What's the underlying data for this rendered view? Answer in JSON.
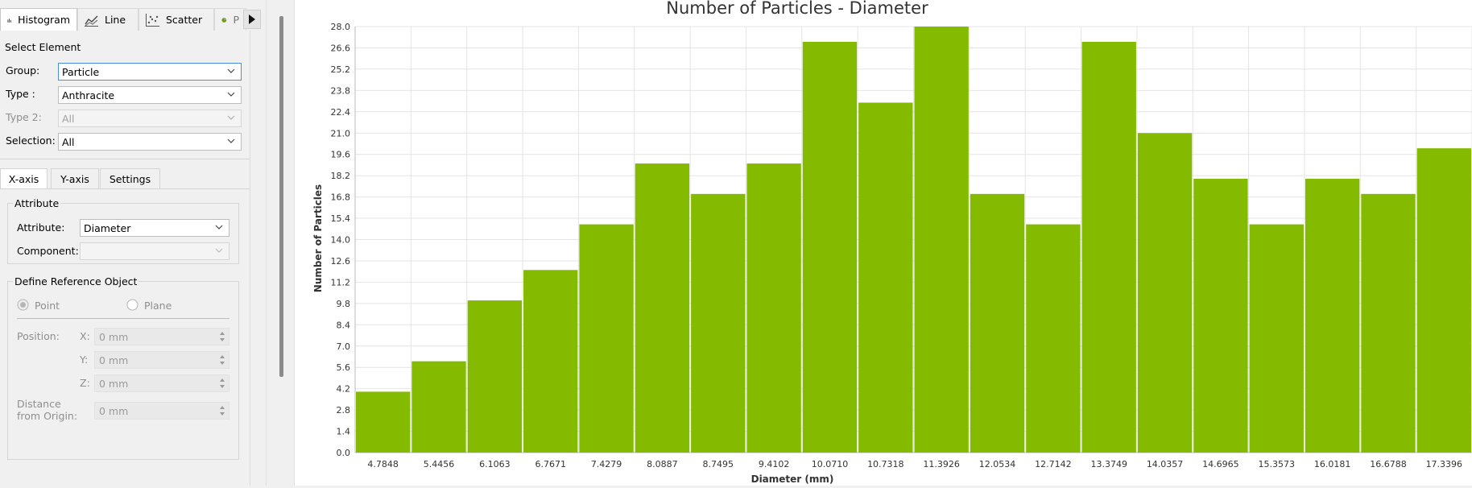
{
  "tabs": [
    {
      "label": "Histogram",
      "icon": "bar-chart-icon",
      "active": true
    },
    {
      "label": "Line",
      "icon": "line-chart-icon",
      "active": false
    },
    {
      "label": "Scatter",
      "icon": "scatter-chart-icon",
      "active": false
    },
    {
      "label": "P",
      "icon": "pie-chart-icon",
      "active": false
    }
  ],
  "select_element": {
    "title": "Select Element",
    "group": {
      "label": "Group:",
      "value": "Particle"
    },
    "type": {
      "label": "Type :",
      "value": "Anthracite"
    },
    "type2": {
      "label": "Type 2:",
      "value": "All"
    },
    "selection": {
      "label": "Selection:",
      "value": "All"
    }
  },
  "subtabs": [
    "X-axis",
    "Y-axis",
    "Settings"
  ],
  "attribute_group": {
    "title": "Attribute",
    "attribute": {
      "label": "Attribute:",
      "value": "Diameter"
    },
    "component": {
      "label": "Component:",
      "value": ""
    }
  },
  "reference": {
    "title": "Define Reference Object",
    "point_label": "Point",
    "plane_label": "Plane",
    "position_label": "Position:",
    "x": {
      "label": "X:",
      "value": "0 mm"
    },
    "y": {
      "label": "Y:",
      "value": "0 mm"
    },
    "z": {
      "label": "Z:",
      "value": "0 mm"
    },
    "distance_label_1": "Distance",
    "distance_label_2": "from Origin:",
    "distance": {
      "value": "0 mm"
    }
  },
  "colors": {
    "bar": "#84bb00",
    "grid": "#e4e4e4",
    "accent": "#4a90d9"
  },
  "chart_data": {
    "type": "bar",
    "title": "Number of Particles - Diameter",
    "xlabel": "Diameter (mm)",
    "ylabel": "Number of Particles",
    "categories": [
      "4.7848",
      "5.4456",
      "6.1063",
      "6.7671",
      "7.4279",
      "8.0887",
      "8.7495",
      "9.4102",
      "10.0710",
      "10.7318",
      "11.3926",
      "12.0534",
      "12.7142",
      "13.3749",
      "14.0357",
      "14.6965",
      "15.3573",
      "16.0181",
      "16.6788",
      "17.3396"
    ],
    "values": [
      4,
      6,
      10,
      12,
      15,
      19,
      17,
      19,
      27,
      23,
      28,
      17,
      15,
      27,
      21,
      18,
      15,
      18,
      17,
      20
    ],
    "yticks": [
      "0.0",
      "1.4",
      "2.8",
      "4.2",
      "5.6",
      "7.0",
      "8.4",
      "9.8",
      "11.2",
      "12.6",
      "14.0",
      "15.4",
      "16.8",
      "18.2",
      "19.6",
      "21.0",
      "22.4",
      "23.8",
      "25.2",
      "26.6",
      "28.0"
    ],
    "ylim": [
      0,
      28
    ],
    "grid": true
  }
}
